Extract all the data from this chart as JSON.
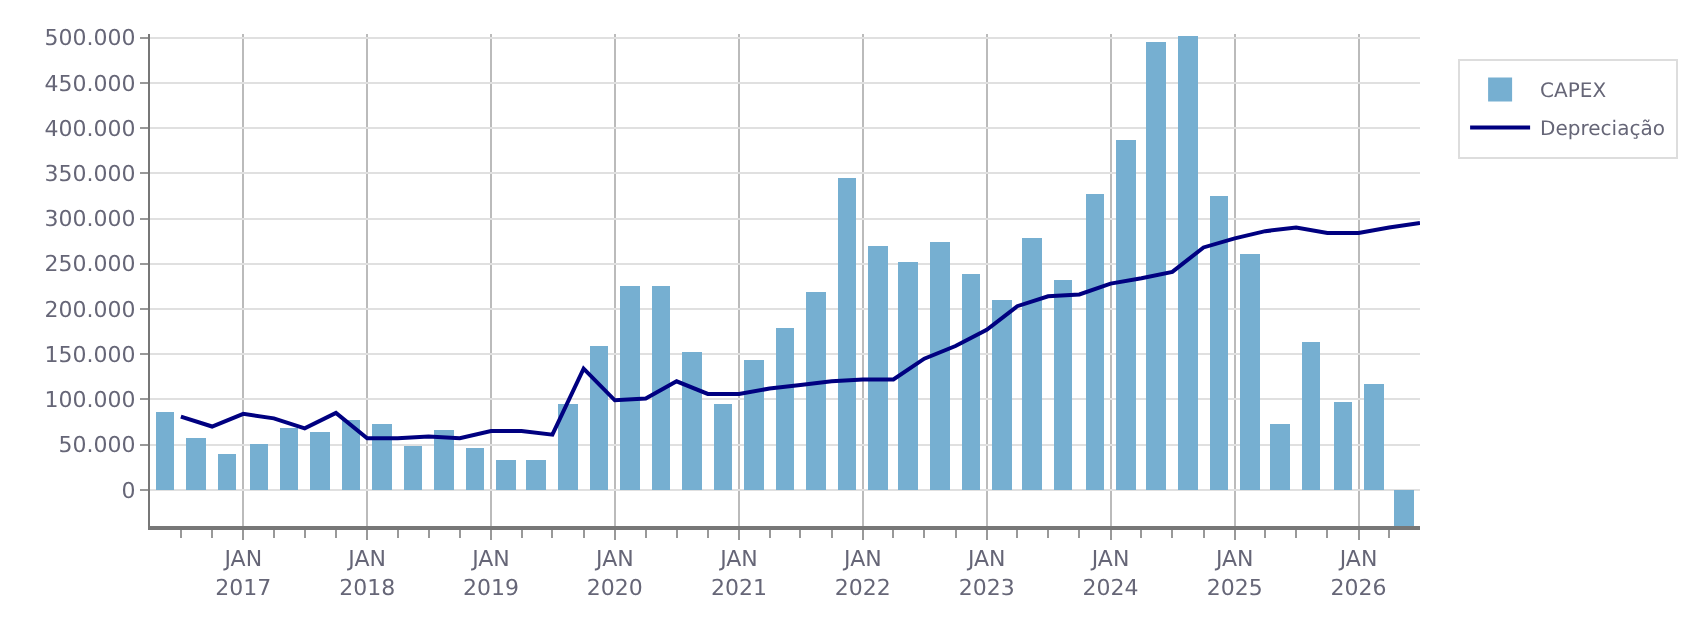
{
  "chart_data": {
    "type": "bar",
    "x": [
      "2016-05-15",
      "2016-08-15",
      "2016-11-15",
      "2017-02-15",
      "2017-05-15",
      "2017-08-15",
      "2017-11-15",
      "2018-02-15",
      "2018-05-15",
      "2018-08-15",
      "2018-11-15",
      "2019-02-15",
      "2019-05-15",
      "2019-08-15",
      "2019-11-15",
      "2020-02-15",
      "2020-05-15",
      "2020-08-15",
      "2020-11-15",
      "2021-02-15",
      "2021-05-15",
      "2021-08-15",
      "2021-11-15",
      "2022-02-15",
      "2022-05-15",
      "2022-08-15",
      "2022-11-15",
      "2023-02-15",
      "2023-05-15",
      "2023-08-15",
      "2023-11-15",
      "2024-02-15",
      "2024-05-15",
      "2024-08-15",
      "2024-11-15",
      "2025-02-15",
      "2025-05-15",
      "2025-08-15",
      "2025-11-15",
      "2026-02-15",
      "2026-05-15"
    ],
    "series": [
      {
        "name": "CAPEX",
        "color": "#76afd1",
        "values": [
          85000,
          58000,
          39000,
          50000,
          68000,
          64000,
          77000,
          73000,
          48000,
          66000,
          46000,
          33000,
          33000,
          95000,
          158000,
          226000,
          226000,
          153000,
          95000,
          143000,
          180000,
          218000,
          344000,
          270000,
          251000,
          274000,
          239000,
          210000,
          278000,
          232000,
          328000,
          386000,
          496000,
          502000,
          324000,
          261000,
          73000,
          164000,
          97000,
          118000,
          -39000
        ]
      },
      {
        "name": "Depreciação",
        "type": "line",
        "color": "#000080",
        "x": [
          "2016-07-01",
          "2016-10-01",
          "2017-01-01",
          "2017-04-01",
          "2017-07-01",
          "2017-10-01",
          "2018-01-01",
          "2018-04-01",
          "2018-07-01",
          "2018-10-01",
          "2019-01-01",
          "2019-04-01",
          "2019-07-01",
          "2019-10-01",
          "2020-01-01",
          "2020-04-01",
          "2020-07-01",
          "2020-10-01",
          "2021-01-01",
          "2021-04-01",
          "2021-07-01",
          "2021-10-01",
          "2022-01-01",
          "2022-04-01",
          "2022-07-01",
          "2022-10-01",
          "2023-01-01",
          "2023-04-01",
          "2023-07-01",
          "2023-10-01",
          "2024-01-01",
          "2024-04-01",
          "2024-07-01",
          "2024-10-01",
          "2025-01-01",
          "2025-04-01",
          "2025-07-01",
          "2025-10-01",
          "2026-01-01",
          "2026-04-01",
          "2026-07-01"
        ],
        "values": [
          81000,
          70000,
          84000,
          79000,
          68000,
          85000,
          57000,
          57000,
          59000,
          57000,
          65000,
          65000,
          61000,
          134000,
          99000,
          101000,
          120000,
          106000,
          106000,
          112000,
          116000,
          120000,
          122000,
          122000,
          145000,
          159000,
          177000,
          203000,
          214000,
          216000,
          228000,
          234000,
          241000,
          268000,
          278000,
          286000,
          290000,
          284000,
          284000,
          290000,
          295000
        ]
      }
    ],
    "xlim": [
      "2016-04-01",
      "2026-07-01"
    ],
    "xticks": [
      {
        "value": "2016-07-01",
        "label": null
      },
      {
        "value": "2016-10-01",
        "label": null
      },
      {
        "value": "2017-01-01",
        "label": "JAN\n2017"
      },
      {
        "value": "2017-04-01",
        "label": null
      },
      {
        "value": "2017-07-01",
        "label": null
      },
      {
        "value": "2017-10-01",
        "label": null
      },
      {
        "value": "2018-01-01",
        "label": "JAN\n2018"
      },
      {
        "value": "2018-04-01",
        "label": null
      },
      {
        "value": "2018-07-01",
        "label": null
      },
      {
        "value": "2018-10-01",
        "label": null
      },
      {
        "value": "2019-01-01",
        "label": "JAN\n2019"
      },
      {
        "value": "2019-04-01",
        "label": null
      },
      {
        "value": "2019-07-01",
        "label": null
      },
      {
        "value": "2019-10-01",
        "label": null
      },
      {
        "value": "2020-01-01",
        "label": "JAN\n2020"
      },
      {
        "value": "2020-04-01",
        "label": null
      },
      {
        "value": "2020-07-01",
        "label": null
      },
      {
        "value": "2020-10-01",
        "label": null
      },
      {
        "value": "2021-01-01",
        "label": "JAN\n2021"
      },
      {
        "value": "2021-04-01",
        "label": null
      },
      {
        "value": "2021-07-01",
        "label": null
      },
      {
        "value": "2021-10-01",
        "label": null
      },
      {
        "value": "2022-01-01",
        "label": "JAN\n2022"
      },
      {
        "value": "2022-04-01",
        "label": null
      },
      {
        "value": "2022-07-01",
        "label": null
      },
      {
        "value": "2022-10-01",
        "label": null
      },
      {
        "value": "2023-01-01",
        "label": "JAN\n2023"
      },
      {
        "value": "2023-04-01",
        "label": null
      },
      {
        "value": "2023-07-01",
        "label": null
      },
      {
        "value": "2023-10-01",
        "label": null
      },
      {
        "value": "2024-01-01",
        "label": "JAN\n2024"
      },
      {
        "value": "2024-04-01",
        "label": null
      },
      {
        "value": "2024-07-01",
        "label": null
      },
      {
        "value": "2024-10-01",
        "label": null
      },
      {
        "value": "2025-01-01",
        "label": "JAN\n2025"
      },
      {
        "value": "2025-04-01",
        "label": null
      },
      {
        "value": "2025-07-01",
        "label": null
      },
      {
        "value": "2025-10-01",
        "label": null
      },
      {
        "value": "2026-01-01",
        "label": "JAN\n2026"
      },
      {
        "value": "2026-04-01",
        "label": null
      }
    ],
    "ylim": [
      -40000,
      504000
    ],
    "yticks": [
      0,
      {
        "value": 50000,
        "label": "50.000"
      },
      {
        "value": 100000,
        "label": "100.000"
      },
      {
        "value": 150000,
        "label": "150.000"
      },
      {
        "value": 200000,
        "label": "200.000"
      },
      {
        "value": 250000,
        "label": "250.000"
      },
      {
        "value": 300000,
        "label": "300.000"
      },
      {
        "value": 350000,
        "label": "350.000"
      },
      {
        "value": 400000,
        "label": "400.000"
      },
      {
        "value": 450000,
        "label": "450.000"
      },
      {
        "value": 500000,
        "label": "500.000"
      }
    ],
    "grid": true,
    "legend": "top right"
  }
}
